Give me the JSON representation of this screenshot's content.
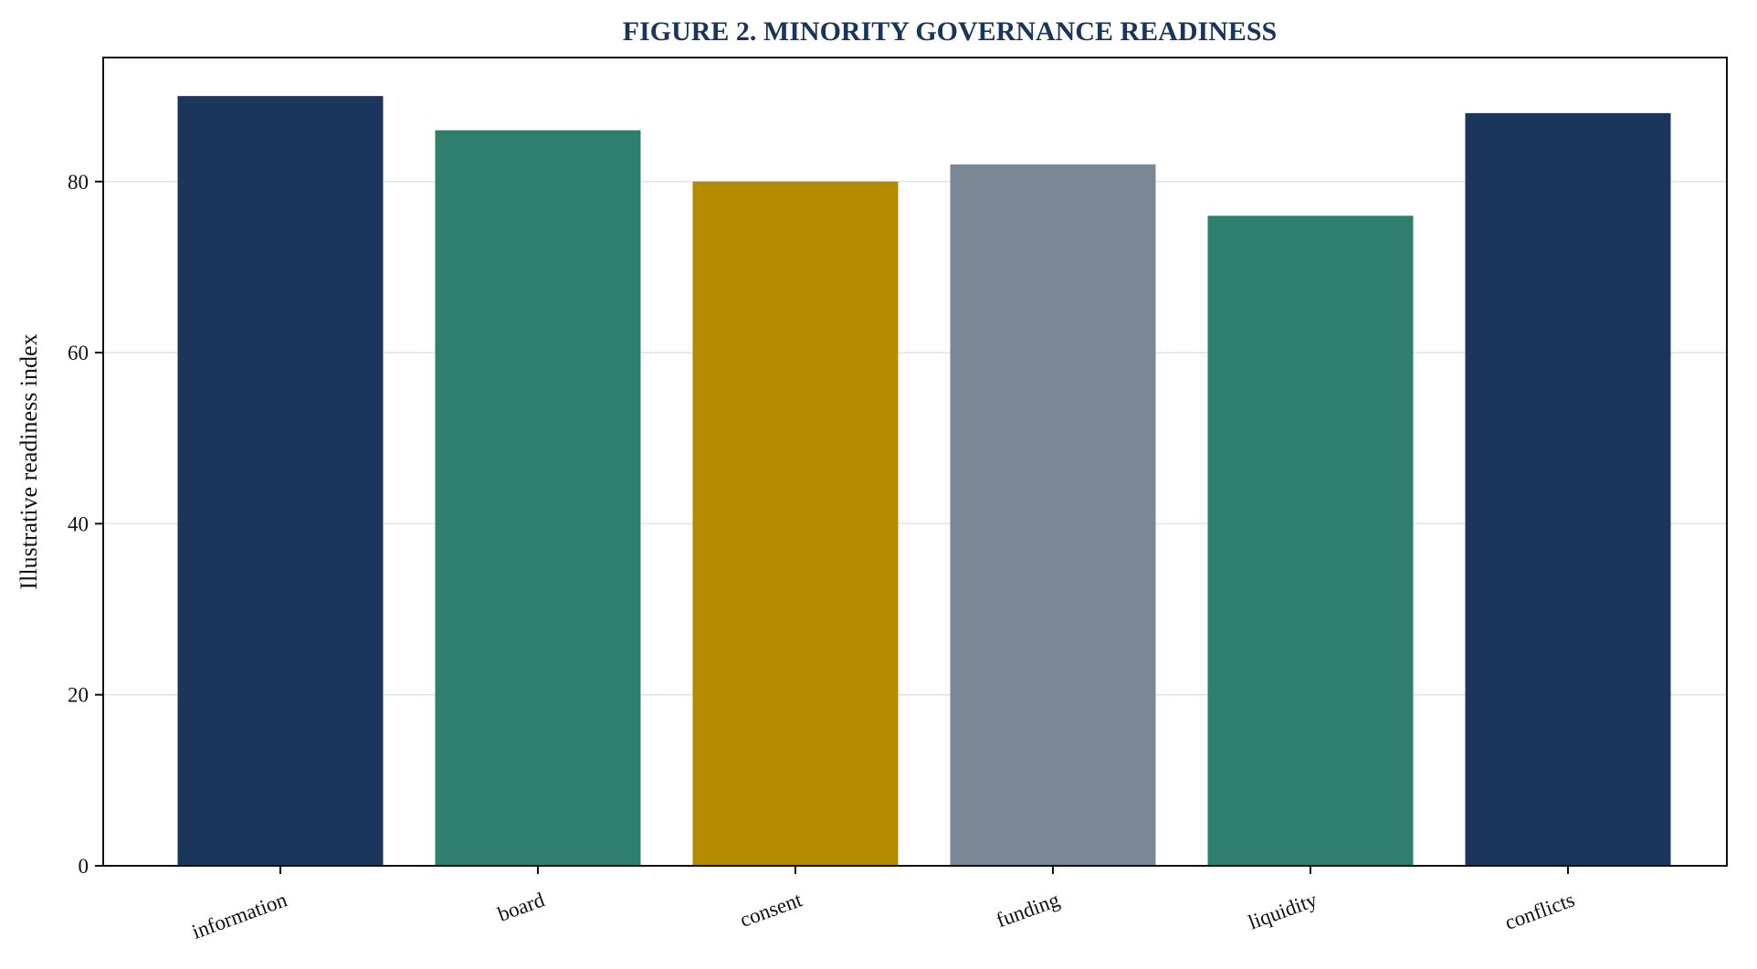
{
  "chart_data": {
    "type": "bar",
    "title": "FIGURE 2. MINORITY GOVERNANCE READINESS",
    "xlabel": "",
    "ylabel": "Illustrative readiness index",
    "categories": [
      "information",
      "board",
      "consent",
      "funding",
      "liquidity",
      "conflicts"
    ],
    "values": [
      90,
      86,
      80,
      82,
      76,
      88
    ],
    "colors": [
      "#1a365d",
      "#2e7f6e",
      "#b38a00",
      "#7a8795",
      "#2e7f6e",
      "#1a365d"
    ],
    "ylim": [
      0,
      94.5
    ],
    "yticks": [
      0,
      20,
      40,
      60,
      80
    ],
    "grid": "horizontal",
    "legend": "none"
  }
}
